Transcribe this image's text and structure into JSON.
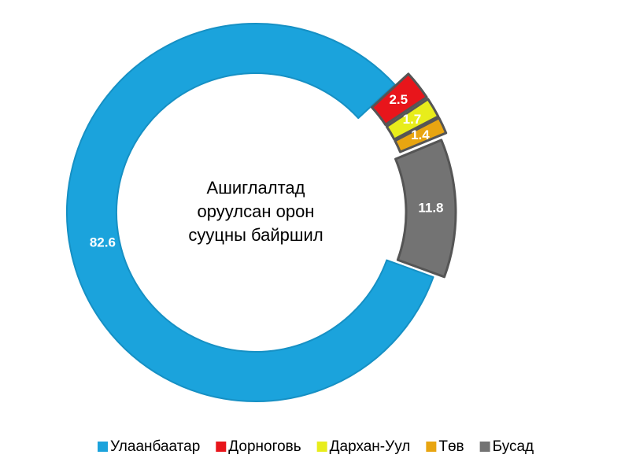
{
  "chart_data": {
    "type": "donut",
    "center_label": [
      "Ашиглалтад",
      "оруулсан орон",
      "сууцны байршил"
    ],
    "categories": [
      "Улаанбаатар",
      "Дорноговь",
      "Дархан-Уул",
      "Төв",
      "Бусад"
    ],
    "values": [
      82.6,
      2.5,
      1.7,
      1.4,
      11.8
    ],
    "colors": [
      "#1ba3dc",
      "#e8151b",
      "#e8ed1b",
      "#e8a511",
      "#737373"
    ],
    "legend": "bottom"
  }
}
